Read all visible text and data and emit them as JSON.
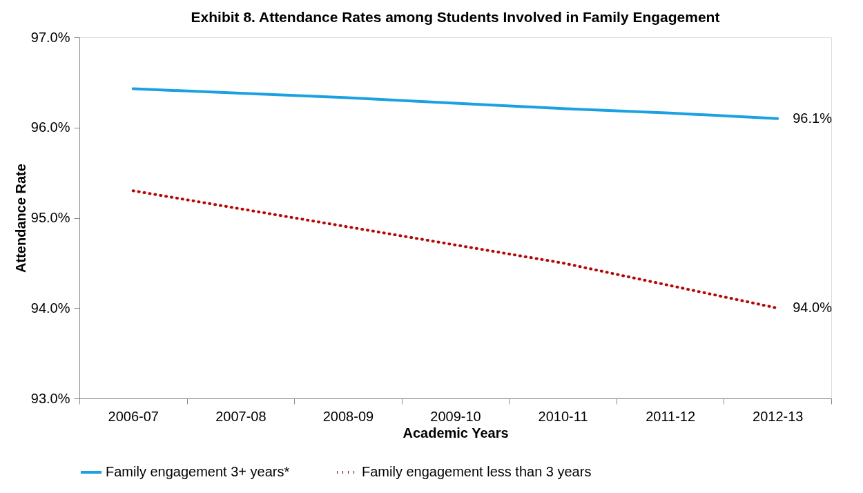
{
  "chart_data": {
    "type": "line",
    "title": "Exhibit 8. Attendance Rates among Students Involved in Family Engagement",
    "xlabel": "Academic Years",
    "ylabel": "Attendance Rate",
    "categories": [
      "2006-07",
      "2007-08",
      "2008-09",
      "2009-10",
      "2010-11",
      "2011-12",
      "2012-13"
    ],
    "series": [
      {
        "name": "Family engagement 3+ years*",
        "color": "#1ba1e2",
        "line_style": "solid",
        "values": [
          96.43,
          96.38,
          96.33,
          96.27,
          96.21,
          96.16,
          96.1
        ],
        "value_labels": [
          null,
          null,
          null,
          null,
          null,
          null,
          "96.1%"
        ]
      },
      {
        "name": "Family engagement less than 3 years",
        "color": "#c00000",
        "line_style": "dotted",
        "values": [
          95.3,
          95.1,
          94.9,
          94.7,
          94.5,
          94.25,
          94.0
        ],
        "value_labels": [
          null,
          null,
          null,
          null,
          null,
          null,
          "94.0%"
        ]
      }
    ],
    "ylim": [
      93,
      97
    ],
    "yticks": [
      {
        "value": 93,
        "label": "93.0%"
      },
      {
        "value": 94,
        "label": "94.0%"
      },
      {
        "value": 95,
        "label": "95.0%"
      },
      {
        "value": 96,
        "label": "96.0%"
      },
      {
        "value": 97,
        "label": "97.0%"
      }
    ],
    "grid": false,
    "legend": "bottom"
  }
}
